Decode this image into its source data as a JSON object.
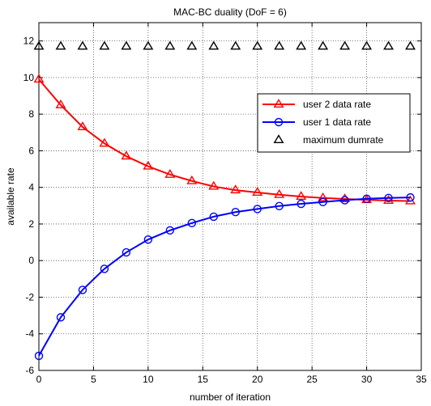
{
  "chart_data": {
    "type": "line",
    "title": "MAC-BC duality (DoF = 6)",
    "xlabel": "number of iteration",
    "ylabel": "available rate",
    "xlim": [
      0,
      35
    ],
    "ylim": [
      -6,
      13
    ],
    "xticks": [
      0,
      5,
      10,
      15,
      20,
      25,
      30,
      35
    ],
    "yticks": [
      -6,
      -4,
      -2,
      0,
      2,
      4,
      6,
      8,
      10,
      12
    ],
    "grid": true,
    "legend_position": "top-right",
    "series": [
      {
        "name": "user 2 data rate",
        "color": "#ff0000",
        "marker": "triangle",
        "line": true,
        "x": [
          0,
          2,
          4,
          6,
          8,
          10,
          12,
          14,
          16,
          18,
          20,
          22,
          24,
          26,
          28,
          30,
          32,
          34
        ],
        "y": [
          9.9,
          8.5,
          7.3,
          6.4,
          5.7,
          5.15,
          4.7,
          4.35,
          4.05,
          3.85,
          3.72,
          3.6,
          3.5,
          3.42,
          3.37,
          3.32,
          3.28,
          3.25
        ]
      },
      {
        "name": "user 1 data rate",
        "color": "#0000ff",
        "marker": "circle",
        "line": true,
        "x": [
          0,
          2,
          4,
          6,
          8,
          10,
          12,
          14,
          16,
          18,
          20,
          22,
          24,
          26,
          28,
          30,
          32,
          34
        ],
        "y": [
          -5.2,
          -3.1,
          -1.6,
          -0.45,
          0.45,
          1.15,
          1.65,
          2.05,
          2.4,
          2.65,
          2.82,
          2.98,
          3.1,
          3.2,
          3.3,
          3.38,
          3.42,
          3.45
        ]
      },
      {
        "name": "maximum dumrate",
        "color": "#000000",
        "marker": "triangle",
        "line": false,
        "x": [
          0,
          2,
          4,
          6,
          8,
          10,
          12,
          14,
          16,
          18,
          20,
          22,
          24,
          26,
          28,
          30,
          32,
          34
        ],
        "y": [
          11.7,
          11.7,
          11.7,
          11.7,
          11.7,
          11.7,
          11.7,
          11.7,
          11.7,
          11.7,
          11.7,
          11.7,
          11.7,
          11.7,
          11.7,
          11.7,
          11.7,
          11.7
        ]
      }
    ]
  }
}
